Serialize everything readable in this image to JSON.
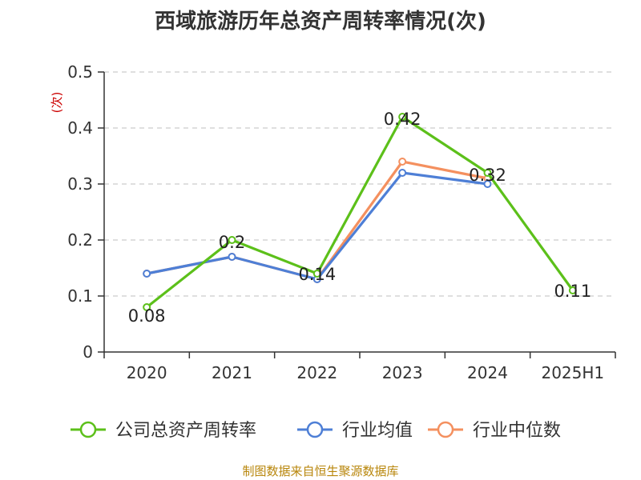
{
  "chart_data": {
    "type": "line",
    "title": "西域旅游历年总资产周转率情况(次)",
    "ylabel": "(次)",
    "xlabel": "",
    "categories": [
      "2020",
      "2021",
      "2022",
      "2023",
      "2024",
      "2025H1"
    ],
    "ylim": [
      0,
      0.5
    ],
    "yticks": [
      "0",
      "0.1",
      "0.2",
      "0.3",
      "0.4",
      "0.5"
    ],
    "yticks_values": [
      0,
      0.1,
      0.2,
      0.3,
      0.4,
      0.5
    ],
    "grid": true,
    "legend_position": "bottom",
    "series": [
      {
        "name": "公司总资产周转率",
        "color": "#5cc01a",
        "values": [
          0.08,
          0.2,
          0.14,
          0.42,
          0.32,
          0.11
        ],
        "labels": [
          "0.08",
          "0.2",
          "0.14",
          "0.42",
          "0.32",
          "0.11"
        ]
      },
      {
        "name": "行业均值",
        "color": "#4e7fd6",
        "values": [
          0.14,
          0.17,
          0.13,
          0.32,
          0.3,
          null
        ]
      },
      {
        "name": "行业中位数",
        "color": "#f4905f",
        "values": [
          0.14,
          0.17,
          0.13,
          0.34,
          0.31,
          null
        ]
      }
    ]
  },
  "source": "制图数据来自恒生聚源数据库"
}
